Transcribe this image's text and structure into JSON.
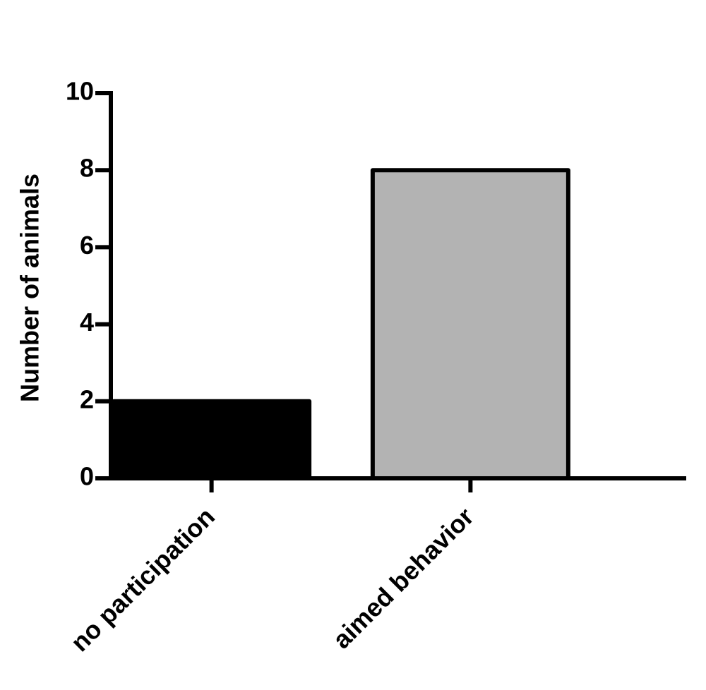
{
  "chart_data": {
    "type": "bar",
    "ylabel": "Number of animals",
    "categories": [
      "no participation",
      "aimed behavior"
    ],
    "values": [
      2,
      8
    ],
    "colors": [
      "#000000",
      "#b3b3b3"
    ],
    "ylim": [
      0,
      10
    ],
    "yticks": [
      0,
      2,
      4,
      6,
      8,
      10
    ]
  }
}
